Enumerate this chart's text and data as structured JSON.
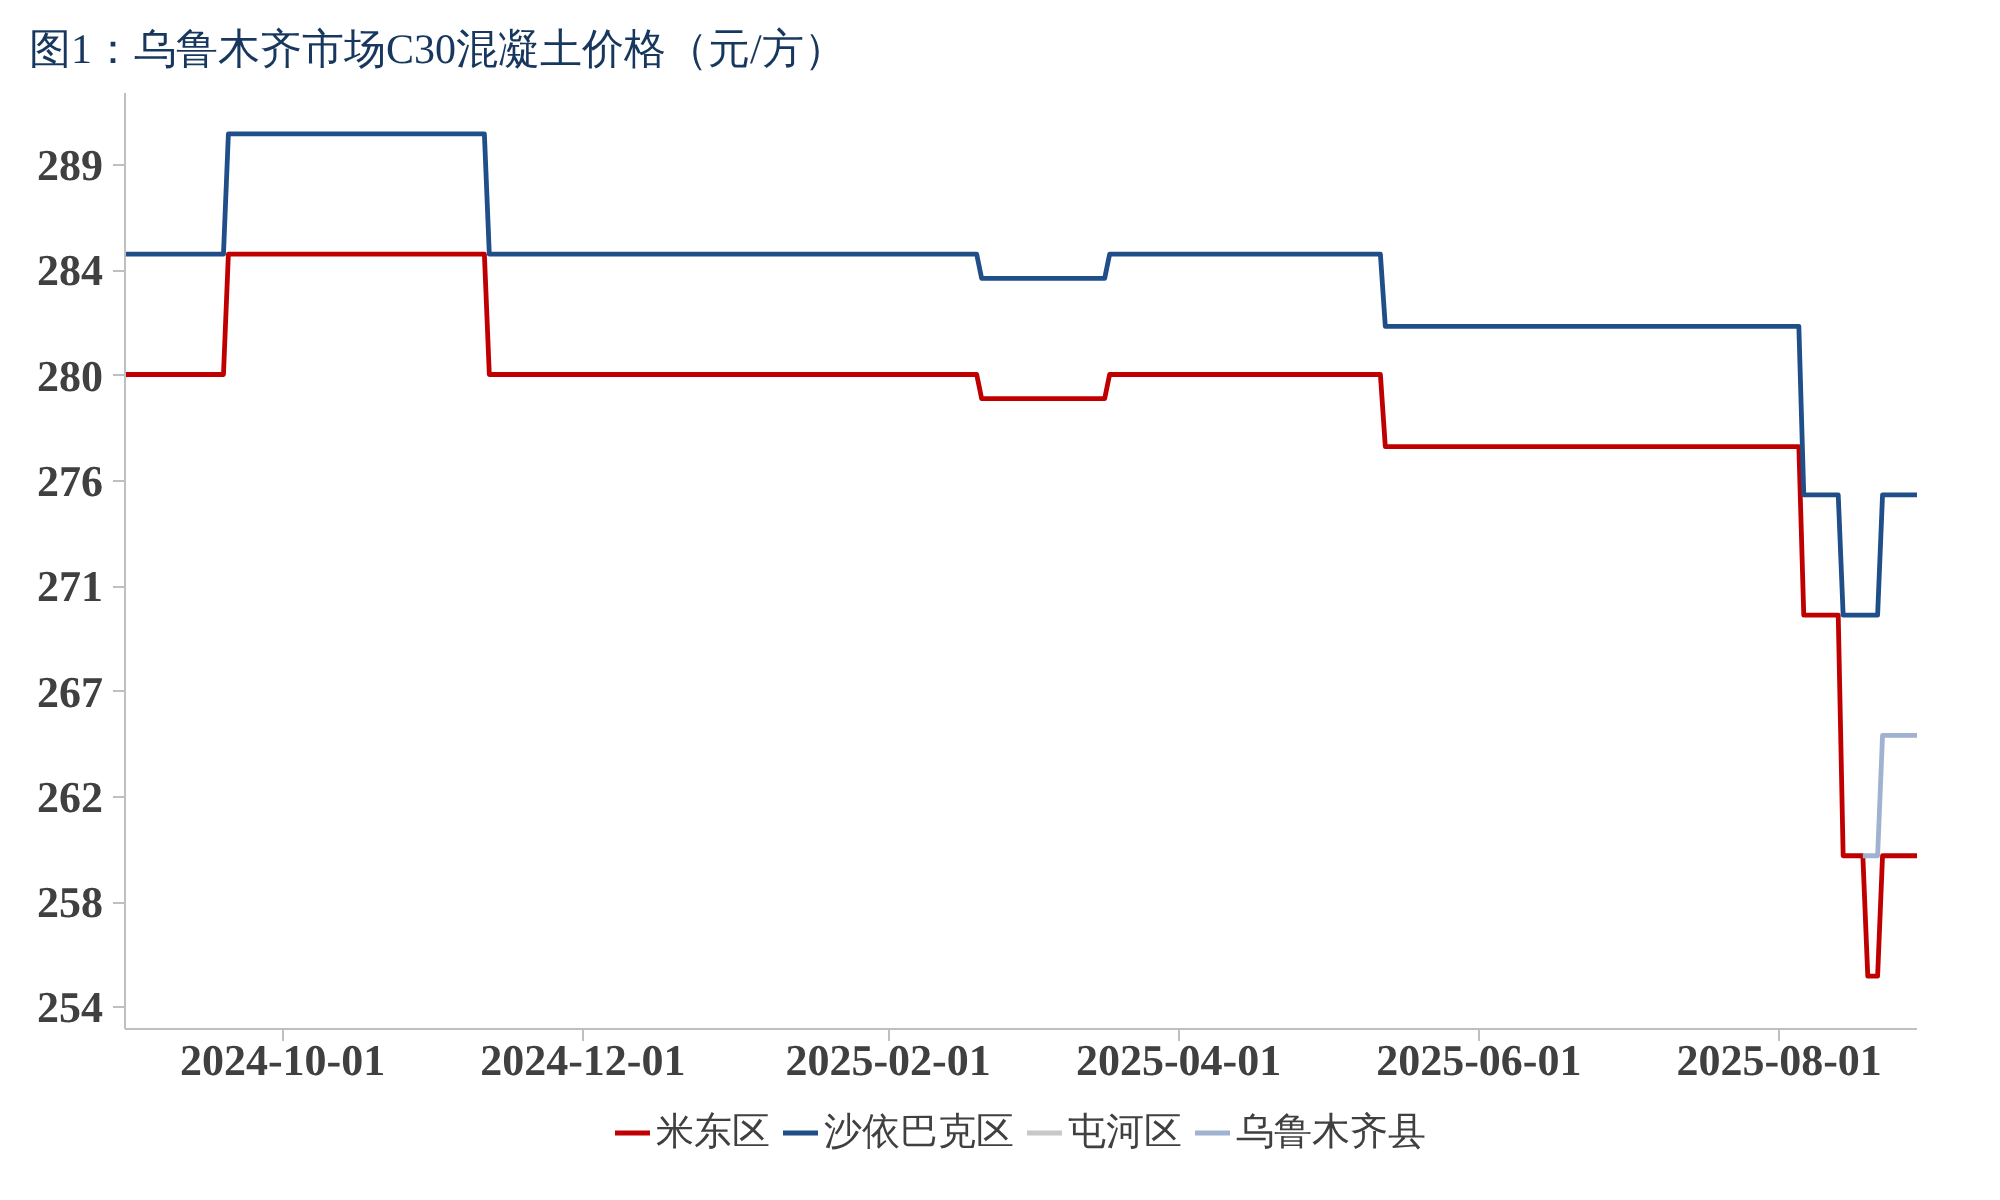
{
  "chart_data": {
    "type": "line",
    "title": "图1：乌鲁木齐市场C30混凝土价格（元/方）",
    "xlim": [
      "2024-08-30",
      "2025-08-29"
    ],
    "xticks": [
      "2024-10-01",
      "2024-12-01",
      "2025-02-01",
      "2025-04-01",
      "2025-06-01",
      "2025-08-01"
    ],
    "ylim": [
      252.8,
      291.7
    ],
    "yticks": [
      {
        "value": 253.7,
        "label": "254"
      },
      {
        "value": 258.075,
        "label": "258"
      },
      {
        "value": 262.45,
        "label": "262"
      },
      {
        "value": 266.825,
        "label": "267"
      },
      {
        "value": 271.2,
        "label": "271"
      },
      {
        "value": 275.575,
        "label": "276"
      },
      {
        "value": 279.95,
        "label": "280"
      },
      {
        "value": 284.325,
        "label": "284"
      },
      {
        "value": 288.7,
        "label": "289"
      }
    ],
    "legend": "bottom",
    "series": [
      {
        "name": "米东区",
        "color": "#c00000",
        "x": [
          "2024-08-30",
          "2024-09-19",
          "2024-09-20",
          "2024-11-11",
          "2024-11-12",
          "2025-02-19",
          "2025-02-20",
          "2025-03-17",
          "2025-03-18",
          "2025-05-12",
          "2025-05-13",
          "2025-08-05",
          "2025-08-06",
          "2025-08-13",
          "2025-08-14",
          "2025-08-18",
          "2025-08-19",
          "2025-08-21",
          "2025-08-22",
          "2025-08-29"
        ],
        "values": [
          280,
          280,
          285,
          285,
          280,
          280,
          279,
          279,
          280,
          280,
          277,
          277,
          270,
          270,
          260,
          260,
          255,
          255,
          260,
          260
        ]
      },
      {
        "name": "沙依巴克区",
        "color": "#1f4e89",
        "x": [
          "2024-08-30",
          "2024-09-19",
          "2024-09-20",
          "2024-11-11",
          "2024-11-12",
          "2025-02-19",
          "2025-02-20",
          "2025-03-17",
          "2025-03-18",
          "2025-05-12",
          "2025-05-13",
          "2025-08-05",
          "2025-08-06",
          "2025-08-13",
          "2025-08-14",
          "2025-08-21",
          "2025-08-22",
          "2025-08-29"
        ],
        "values": [
          285,
          285,
          290,
          290,
          285,
          285,
          284,
          284,
          285,
          285,
          282,
          282,
          275,
          275,
          270,
          270,
          275,
          275
        ]
      },
      {
        "name": "屯河区",
        "color": "#c8c8c8"
      },
      {
        "name": "乌鲁木齐县",
        "color": "#9fb3d1",
        "x": [
          "2025-08-18",
          "2025-08-21",
          "2025-08-22",
          "2025-08-29"
        ],
        "values": [
          260,
          260,
          265,
          265
        ]
      }
    ]
  }
}
